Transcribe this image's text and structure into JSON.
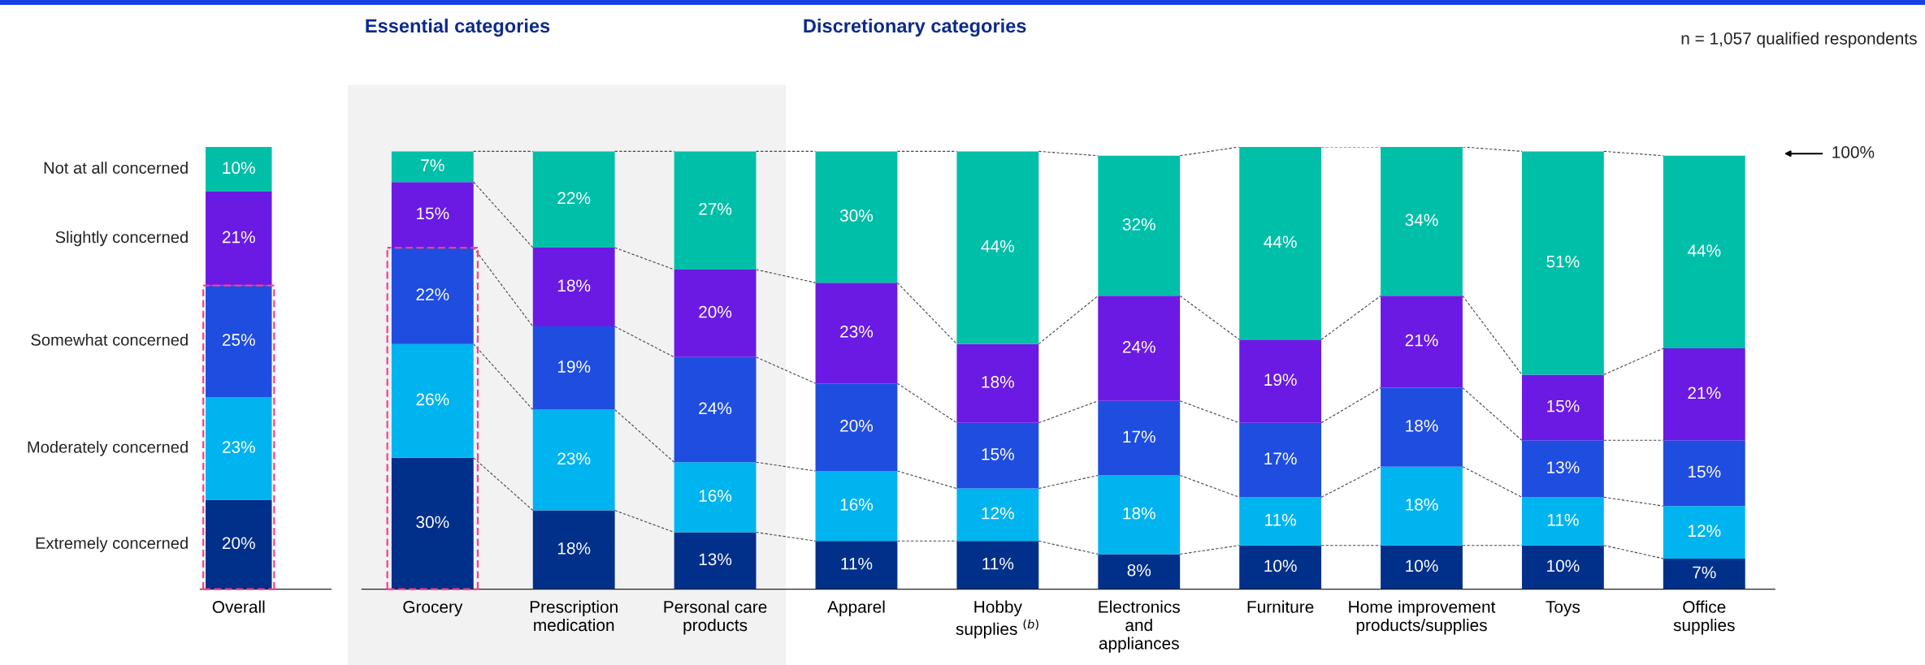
{
  "chart_data": [
    {
      "type": "bar",
      "stacked": true,
      "categories": [
        "Overall"
      ],
      "grid": false,
      "tick_labels": "x",
      "series": [
        {
          "name": "Extremely concerned",
          "color": "#00308a",
          "values": [
            20
          ],
          "value_labels": [
            "20%"
          ]
        },
        {
          "name": "Moderately concerned",
          "color": "#00b4ef",
          "values": [
            23
          ],
          "value_labels": [
            "23%"
          ]
        },
        {
          "name": "Somewhat concerned",
          "color": "#1f4de0",
          "values": [
            25
          ],
          "value_labels": [
            "25%"
          ]
        },
        {
          "name": "Slightly concerned",
          "color": "#6b1ae3",
          "values": [
            21
          ],
          "value_labels": [
            "21%"
          ]
        },
        {
          "name": "Not at all concerned",
          "color": "#00bfa8",
          "values": [
            10
          ],
          "value_labels": [
            "10%"
          ]
        }
      ]
    },
    {
      "type": "bar",
      "stacked": true,
      "categories": [
        "Grocery",
        "Prescription\nmedication",
        "Personal care\nproducts",
        "Apparel",
        "Hobby\nsupplies $^{(b)}$",
        "Electronics\nand\nappliances",
        "Furniture",
        "Home improvement\nproducts/supplies",
        "Toys",
        "Office\nsupplies"
      ],
      "grid": false,
      "tick_labels": "x",
      "bands": [
        {
          "axis": "x",
          "from": "Grocery",
          "to": "Personal care\nproducts",
          "label": "Essential categories",
          "color": "#f2f2f2"
        }
      ],
      "annotations": [
        "Discretionary categories",
        "n = 1,057 qualified respondents",
        "100%"
      ],
      "series": [
        {
          "color": "#00308a",
          "values": [
            30,
            18,
            13,
            11,
            11,
            8,
            10,
            10,
            10,
            7
          ],
          "value_labels": [
            "30%",
            "18%",
            "13%",
            "11%",
            "11%",
            "8%",
            "10%",
            "10%",
            "10%",
            "7%"
          ]
        },
        {
          "color": "#00b4ef",
          "values": [
            26,
            23,
            16,
            16,
            12,
            18,
            11,
            18,
            11,
            12
          ],
          "value_labels": [
            "26%",
            "23%",
            "16%",
            "16%",
            "12%",
            "18%",
            "11%",
            "18%",
            "11%",
            "12%"
          ]
        },
        {
          "color": "#1f4de0",
          "values": [
            22,
            19,
            24,
            20,
            15,
            17,
            17,
            18,
            13,
            15
          ],
          "value_labels": [
            "22%",
            "19%",
            "24%",
            "20%",
            "15%",
            "17%",
            "17%",
            "18%",
            "13%",
            "15%"
          ]
        },
        {
          "color": "#6b1ae3",
          "values": [
            15,
            18,
            20,
            23,
            18,
            24,
            19,
            21,
            15,
            21
          ],
          "value_labels": [
            "15%",
            "18%",
            "20%",
            "23%",
            "18%",
            "24%",
            "19%",
            "21%",
            "15%",
            "21%"
          ]
        },
        {
          "color": "#00bfa8",
          "values": [
            7,
            22,
            27,
            30,
            44,
            32,
            44,
            34,
            51,
            44
          ],
          "value_labels": [
            "7%",
            "22%",
            "27%",
            "30%",
            "44%",
            "32%",
            "44%",
            "34%",
            "51%",
            "44%"
          ]
        }
      ]
    }
  ]
}
